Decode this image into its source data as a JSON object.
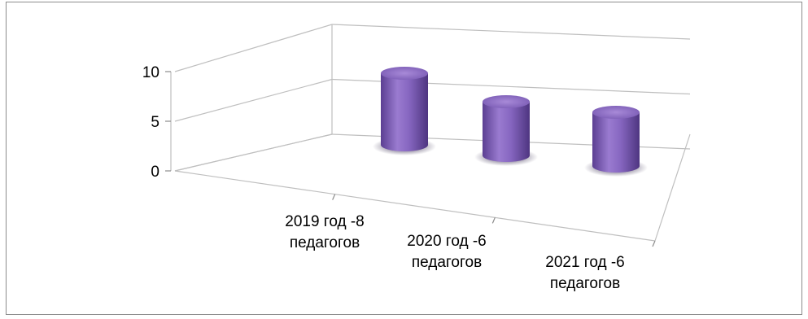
{
  "chart_data": {
    "type": "bar",
    "style": "3d-cylinder",
    "categories": [
      [
        "2019 год -8",
        "педагогов"
      ],
      [
        "2020 год -6",
        "педагогов"
      ],
      [
        "2021 год -6",
        "педагогов"
      ]
    ],
    "values": [
      8,
      6,
      6
    ],
    "ylim": [
      0,
      10
    ],
    "yticks": [
      "0",
      "5",
      "10"
    ],
    "grid": true,
    "legend": "none",
    "title": "",
    "xlabel": "",
    "ylabel": "",
    "colors": {
      "bar_main": "#8c6ac4",
      "bar_dark": "#5a3d8f",
      "bar_light": "#b59be0",
      "shadow": "#3b2a5c",
      "grid": "#bfbfbf"
    }
  }
}
